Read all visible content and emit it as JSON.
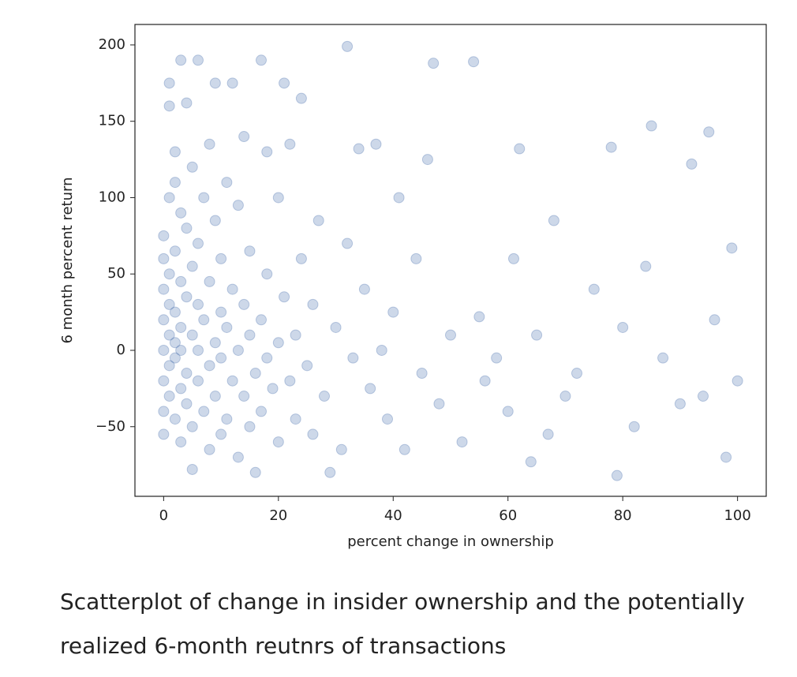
{
  "chart_data": {
    "type": "scatter",
    "xlabel": "percent change in ownership",
    "ylabel": "6 month percent return",
    "color": "#4c72b0",
    "xlim": [
      -5,
      105
    ],
    "ylim": [
      -95.6,
      213.4
    ],
    "xticks": [
      0,
      20,
      40,
      60,
      80,
      100
    ],
    "yticks": [
      {
        "value": -50,
        "label": "−50"
      },
      0,
      50,
      100,
      150,
      200
    ],
    "x": [
      0,
      0,
      0,
      0,
      0,
      0,
      0,
      0,
      1,
      1,
      1,
      1,
      1,
      1,
      1,
      1,
      2,
      2,
      2,
      2,
      2,
      2,
      2,
      3,
      3,
      3,
      3,
      3,
      3,
      3,
      4,
      4,
      4,
      4,
      4,
      5,
      5,
      5,
      5,
      5,
      6,
      6,
      6,
      6,
      6,
      7,
      7,
      7,
      8,
      8,
      8,
      8,
      9,
      9,
      9,
      9,
      10,
      10,
      10,
      10,
      11,
      11,
      11,
      12,
      12,
      12,
      13,
      13,
      13,
      14,
      14,
      14,
      15,
      15,
      15,
      16,
      16,
      17,
      17,
      17,
      18,
      18,
      18,
      19,
      20,
      20,
      20,
      21,
      21,
      22,
      22,
      23,
      23,
      24,
      24,
      25,
      26,
      26,
      27,
      28,
      29,
      30,
      31,
      32,
      32,
      33,
      34,
      35,
      36,
      37,
      38,
      39,
      40,
      41,
      42,
      44,
      45,
      46,
      47,
      48,
      50,
      52,
      54,
      55,
      56,
      58,
      60,
      61,
      62,
      64,
      65,
      67,
      68,
      70,
      72,
      75,
      78,
      79,
      80,
      82,
      84,
      85,
      87,
      90,
      92,
      94,
      95,
      96,
      98,
      99,
      100
    ],
    "y": [
      0,
      20,
      -20,
      40,
      -40,
      60,
      75,
      -55,
      10,
      -10,
      30,
      -30,
      50,
      100,
      160,
      175,
      5,
      -5,
      25,
      -45,
      65,
      110,
      130,
      0,
      15,
      -25,
      45,
      -60,
      90,
      190,
      -15,
      35,
      -35,
      80,
      162,
      10,
      -50,
      55,
      120,
      -78,
      0,
      -20,
      30,
      70,
      190,
      -40,
      20,
      100,
      -10,
      45,
      -65,
      135,
      5,
      -30,
      85,
      175,
      -5,
      25,
      -55,
      60,
      15,
      -45,
      110,
      -20,
      40,
      175,
      0,
      -70,
      95,
      -30,
      30,
      140,
      10,
      -50,
      65,
      -15,
      -80,
      20,
      190,
      -40,
      -5,
      50,
      130,
      -25,
      5,
      100,
      -60,
      35,
      175,
      -20,
      135,
      10,
      -45,
      60,
      165,
      -10,
      30,
      -55,
      85,
      -30,
      -80,
      15,
      -65,
      199,
      70,
      -5,
      132,
      40,
      -25,
      135,
      0,
      -45,
      25,
      100,
      -65,
      60,
      -15,
      125,
      188,
      -35,
      10,
      -60,
      189,
      22,
      -20,
      -5,
      -40,
      60,
      132,
      -73,
      10,
      -55,
      85,
      -30,
      -15,
      40,
      133,
      -82,
      15,
      -50,
      55,
      147,
      -5,
      -35,
      122,
      -30,
      143,
      20,
      -70,
      67,
      -20
    ]
  },
  "caption": "Scatterplot of change in insider ownership and the potentially realized 6-month reutnrs of transactions"
}
